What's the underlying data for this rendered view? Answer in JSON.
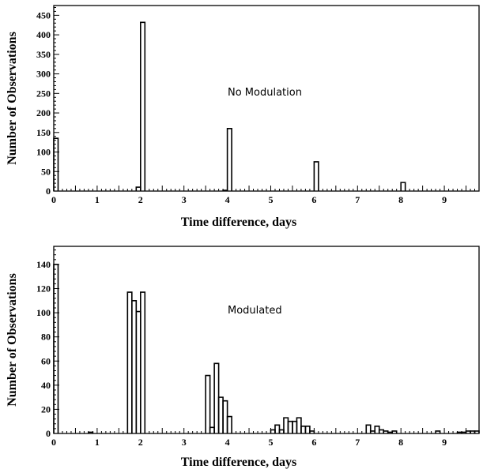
{
  "chart_data": [
    {
      "type": "bar",
      "annotation": "No Modulation",
      "xlabel": "Time difference, days",
      "ylabel": "Number of Observations",
      "xlim": [
        0,
        9.8
      ],
      "ylim": [
        0,
        475
      ],
      "bin_width": 0.1,
      "x_ticks": [
        0,
        1,
        2,
        3,
        4,
        5,
        6,
        7,
        8,
        9
      ],
      "y_ticks": [
        0,
        50,
        100,
        150,
        200,
        250,
        300,
        350,
        400,
        450
      ],
      "bins": [
        {
          "x": 0.0,
          "value": 135
        },
        {
          "x": 1.9,
          "value": 10
        },
        {
          "x": 2.0,
          "value": 432
        },
        {
          "x": 3.9,
          "value": 2
        },
        {
          "x": 4.0,
          "value": 160
        },
        {
          "x": 6.0,
          "value": 75
        },
        {
          "x": 8.0,
          "value": 22
        }
      ]
    },
    {
      "type": "bar",
      "annotation": "Modulated",
      "xlabel": "Time difference, days",
      "ylabel": "Number of Observations",
      "xlim": [
        0,
        9.8
      ],
      "ylim": [
        0,
        155
      ],
      "bin_width": 0.1,
      "x_ticks": [
        0,
        1,
        2,
        3,
        4,
        5,
        6,
        7,
        8,
        9
      ],
      "y_ticks": [
        0,
        20,
        40,
        60,
        80,
        100,
        120,
        140
      ],
      "bins": [
        {
          "x": 0.0,
          "value": 140
        },
        {
          "x": 0.8,
          "value": 1
        },
        {
          "x": 1.7,
          "value": 117
        },
        {
          "x": 1.8,
          "value": 110
        },
        {
          "x": 1.9,
          "value": 101
        },
        {
          "x": 2.0,
          "value": 117
        },
        {
          "x": 3.5,
          "value": 48
        },
        {
          "x": 3.6,
          "value": 5
        },
        {
          "x": 3.7,
          "value": 58
        },
        {
          "x": 3.8,
          "value": 30
        },
        {
          "x": 3.9,
          "value": 27
        },
        {
          "x": 4.0,
          "value": 14
        },
        {
          "x": 5.0,
          "value": 3
        },
        {
          "x": 5.1,
          "value": 7
        },
        {
          "x": 5.2,
          "value": 3
        },
        {
          "x": 5.3,
          "value": 13
        },
        {
          "x": 5.4,
          "value": 10
        },
        {
          "x": 5.5,
          "value": 10
        },
        {
          "x": 5.6,
          "value": 13
        },
        {
          "x": 5.7,
          "value": 6
        },
        {
          "x": 5.8,
          "value": 6
        },
        {
          "x": 5.9,
          "value": 2
        },
        {
          "x": 7.2,
          "value": 7
        },
        {
          "x": 7.3,
          "value": 2
        },
        {
          "x": 7.4,
          "value": 6
        },
        {
          "x": 7.5,
          "value": 3
        },
        {
          "x": 7.6,
          "value": 2
        },
        {
          "x": 7.7,
          "value": 1
        },
        {
          "x": 7.8,
          "value": 2
        },
        {
          "x": 8.8,
          "value": 2
        },
        {
          "x": 9.3,
          "value": 1
        },
        {
          "x": 9.4,
          "value": 1
        },
        {
          "x": 9.5,
          "value": 2
        },
        {
          "x": 9.6,
          "value": 2
        },
        {
          "x": 9.7,
          "value": 2
        }
      ]
    }
  ]
}
